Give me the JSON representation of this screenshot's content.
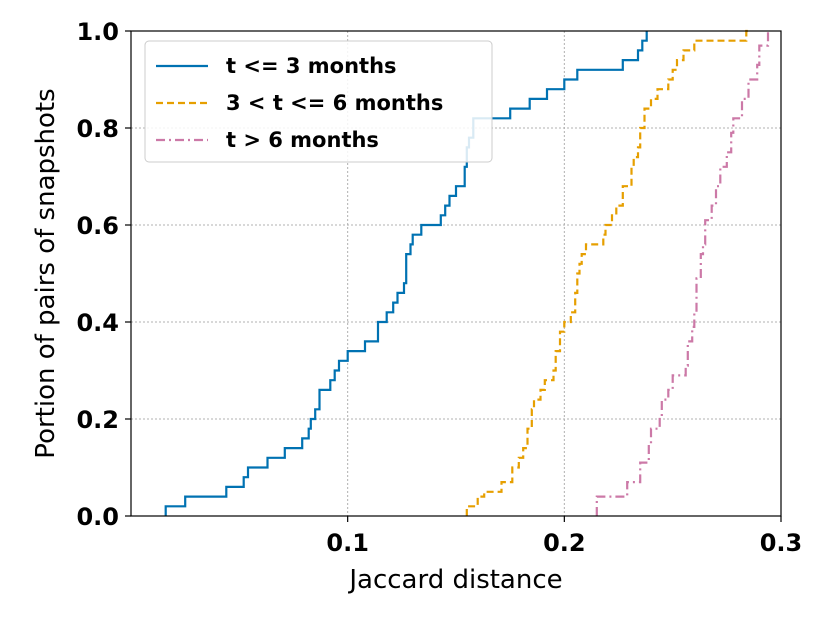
{
  "chart_data": {
    "type": "line",
    "step": true,
    "xlabel": "Jaccard distance",
    "ylabel": "Portion of pairs of snapshots",
    "xlim": [
      0.0,
      0.3
    ],
    "ylim": [
      0.0,
      1.0
    ],
    "x_ticks": [
      {
        "value": 0.1,
        "label": "0.1"
      },
      {
        "value": 0.2,
        "label": "0.2"
      },
      {
        "value": 0.3,
        "label": "0.3"
      }
    ],
    "y_ticks": [
      {
        "value": 0.0,
        "label": "0.0"
      },
      {
        "value": 0.2,
        "label": "0.2"
      },
      {
        "value": 0.4,
        "label": "0.4"
      },
      {
        "value": 0.6,
        "label": "0.6"
      },
      {
        "value": 0.8,
        "label": "0.8"
      },
      {
        "value": 1.0,
        "label": "1.0"
      }
    ],
    "grid": true,
    "legend_position": "top-left",
    "series": [
      {
        "name": "t <= 3 months",
        "color": "#0072b2",
        "dash": "solid",
        "points": [
          [
            0.016,
            0.0
          ],
          [
            0.016,
            0.02
          ],
          [
            0.025,
            0.02
          ],
          [
            0.025,
            0.04
          ],
          [
            0.044,
            0.04
          ],
          [
            0.044,
            0.06
          ],
          [
            0.052,
            0.06
          ],
          [
            0.052,
            0.08
          ],
          [
            0.054,
            0.08
          ],
          [
            0.054,
            0.1
          ],
          [
            0.063,
            0.1
          ],
          [
            0.063,
            0.12
          ],
          [
            0.071,
            0.12
          ],
          [
            0.071,
            0.14
          ],
          [
            0.079,
            0.14
          ],
          [
            0.079,
            0.16
          ],
          [
            0.082,
            0.16
          ],
          [
            0.082,
            0.18
          ],
          [
            0.083,
            0.18
          ],
          [
            0.083,
            0.2
          ],
          [
            0.085,
            0.2
          ],
          [
            0.085,
            0.22
          ],
          [
            0.087,
            0.22
          ],
          [
            0.087,
            0.26
          ],
          [
            0.092,
            0.26
          ],
          [
            0.092,
            0.28
          ],
          [
            0.094,
            0.28
          ],
          [
            0.094,
            0.3
          ],
          [
            0.096,
            0.3
          ],
          [
            0.096,
            0.32
          ],
          [
            0.1,
            0.32
          ],
          [
            0.1,
            0.34
          ],
          [
            0.108,
            0.34
          ],
          [
            0.108,
            0.36
          ],
          [
            0.114,
            0.36
          ],
          [
            0.114,
            0.4
          ],
          [
            0.118,
            0.4
          ],
          [
            0.118,
            0.42
          ],
          [
            0.121,
            0.42
          ],
          [
            0.121,
            0.44
          ],
          [
            0.123,
            0.44
          ],
          [
            0.123,
            0.46
          ],
          [
            0.126,
            0.46
          ],
          [
            0.126,
            0.48
          ],
          [
            0.127,
            0.48
          ],
          [
            0.127,
            0.54
          ],
          [
            0.129,
            0.54
          ],
          [
            0.129,
            0.56
          ],
          [
            0.13,
            0.56
          ],
          [
            0.13,
            0.58
          ],
          [
            0.134,
            0.58
          ],
          [
            0.134,
            0.6
          ],
          [
            0.143,
            0.6
          ],
          [
            0.143,
            0.62
          ],
          [
            0.145,
            0.62
          ],
          [
            0.145,
            0.64
          ],
          [
            0.147,
            0.64
          ],
          [
            0.147,
            0.66
          ],
          [
            0.15,
            0.66
          ],
          [
            0.15,
            0.68
          ],
          [
            0.154,
            0.68
          ],
          [
            0.154,
            0.72
          ],
          [
            0.155,
            0.72
          ],
          [
            0.155,
            0.76
          ],
          [
            0.156,
            0.76
          ],
          [
            0.156,
            0.78
          ],
          [
            0.158,
            0.78
          ],
          [
            0.158,
            0.82
          ],
          [
            0.175,
            0.82
          ],
          [
            0.175,
            0.84
          ],
          [
            0.184,
            0.84
          ],
          [
            0.184,
            0.86
          ],
          [
            0.192,
            0.86
          ],
          [
            0.192,
            0.88
          ],
          [
            0.2,
            0.88
          ],
          [
            0.2,
            0.9
          ],
          [
            0.206,
            0.9
          ],
          [
            0.206,
            0.92
          ],
          [
            0.227,
            0.92
          ],
          [
            0.227,
            0.94
          ],
          [
            0.234,
            0.94
          ],
          [
            0.234,
            0.96
          ],
          [
            0.236,
            0.96
          ],
          [
            0.236,
            0.98
          ],
          [
            0.238,
            0.98
          ],
          [
            0.238,
            1.0
          ]
        ]
      },
      {
        "name": "3 < t <= 6 months",
        "color": "#e69f00",
        "dash": "dashed",
        "points": [
          [
            0.155,
            0.0
          ],
          [
            0.155,
            0.02
          ],
          [
            0.16,
            0.02
          ],
          [
            0.16,
            0.04
          ],
          [
            0.163,
            0.04
          ],
          [
            0.163,
            0.05
          ],
          [
            0.171,
            0.05
          ],
          [
            0.171,
            0.07
          ],
          [
            0.176,
            0.07
          ],
          [
            0.176,
            0.1
          ],
          [
            0.179,
            0.1
          ],
          [
            0.179,
            0.12
          ],
          [
            0.181,
            0.12
          ],
          [
            0.181,
            0.14
          ],
          [
            0.183,
            0.14
          ],
          [
            0.183,
            0.18
          ],
          [
            0.185,
            0.18
          ],
          [
            0.185,
            0.22
          ],
          [
            0.186,
            0.22
          ],
          [
            0.186,
            0.24
          ],
          [
            0.189,
            0.24
          ],
          [
            0.189,
            0.26
          ],
          [
            0.191,
            0.26
          ],
          [
            0.191,
            0.28
          ],
          [
            0.195,
            0.28
          ],
          [
            0.195,
            0.3
          ],
          [
            0.196,
            0.3
          ],
          [
            0.196,
            0.34
          ],
          [
            0.198,
            0.34
          ],
          [
            0.198,
            0.38
          ],
          [
            0.2,
            0.38
          ],
          [
            0.2,
            0.4
          ],
          [
            0.203,
            0.4
          ],
          [
            0.203,
            0.42
          ],
          [
            0.205,
            0.42
          ],
          [
            0.205,
            0.46
          ],
          [
            0.206,
            0.46
          ],
          [
            0.206,
            0.5
          ],
          [
            0.207,
            0.5
          ],
          [
            0.207,
            0.52
          ],
          [
            0.208,
            0.52
          ],
          [
            0.208,
            0.54
          ],
          [
            0.21,
            0.54
          ],
          [
            0.21,
            0.56
          ],
          [
            0.218,
            0.56
          ],
          [
            0.218,
            0.58
          ],
          [
            0.219,
            0.58
          ],
          [
            0.219,
            0.6
          ],
          [
            0.222,
            0.6
          ],
          [
            0.222,
            0.62
          ],
          [
            0.224,
            0.62
          ],
          [
            0.224,
            0.64
          ],
          [
            0.227,
            0.64
          ],
          [
            0.227,
            0.68
          ],
          [
            0.231,
            0.68
          ],
          [
            0.231,
            0.72
          ],
          [
            0.232,
            0.72
          ],
          [
            0.232,
            0.74
          ],
          [
            0.234,
            0.74
          ],
          [
            0.234,
            0.76
          ],
          [
            0.235,
            0.76
          ],
          [
            0.235,
            0.8
          ],
          [
            0.237,
            0.8
          ],
          [
            0.237,
            0.84
          ],
          [
            0.24,
            0.84
          ],
          [
            0.24,
            0.86
          ],
          [
            0.243,
            0.86
          ],
          [
            0.243,
            0.88
          ],
          [
            0.248,
            0.88
          ],
          [
            0.248,
            0.9
          ],
          [
            0.25,
            0.9
          ],
          [
            0.25,
            0.92
          ],
          [
            0.252,
            0.92
          ],
          [
            0.252,
            0.94
          ],
          [
            0.255,
            0.94
          ],
          [
            0.255,
            0.96
          ],
          [
            0.26,
            0.96
          ],
          [
            0.26,
            0.98
          ],
          [
            0.284,
            0.98
          ],
          [
            0.284,
            1.0
          ],
          [
            0.286,
            1.0
          ]
        ]
      },
      {
        "name": "t > 6 months",
        "color": "#cc79a7",
        "dash": "dashdot",
        "points": [
          [
            0.215,
            0.0
          ],
          [
            0.215,
            0.04
          ],
          [
            0.229,
            0.04
          ],
          [
            0.229,
            0.07
          ],
          [
            0.235,
            0.07
          ],
          [
            0.235,
            0.11
          ],
          [
            0.239,
            0.11
          ],
          [
            0.239,
            0.15
          ],
          [
            0.24,
            0.15
          ],
          [
            0.24,
            0.18
          ],
          [
            0.244,
            0.18
          ],
          [
            0.244,
            0.2
          ],
          [
            0.245,
            0.2
          ],
          [
            0.245,
            0.24
          ],
          [
            0.248,
            0.24
          ],
          [
            0.248,
            0.26
          ],
          [
            0.25,
            0.26
          ],
          [
            0.25,
            0.29
          ],
          [
            0.256,
            0.29
          ],
          [
            0.256,
            0.31
          ],
          [
            0.257,
            0.31
          ],
          [
            0.257,
            0.36
          ],
          [
            0.259,
            0.36
          ],
          [
            0.259,
            0.39
          ],
          [
            0.26,
            0.39
          ],
          [
            0.26,
            0.42
          ],
          [
            0.261,
            0.42
          ],
          [
            0.261,
            0.49
          ],
          [
            0.263,
            0.49
          ],
          [
            0.263,
            0.54
          ],
          [
            0.264,
            0.54
          ],
          [
            0.264,
            0.56
          ],
          [
            0.265,
            0.56
          ],
          [
            0.265,
            0.61
          ],
          [
            0.268,
            0.61
          ],
          [
            0.268,
            0.64
          ],
          [
            0.27,
            0.64
          ],
          [
            0.27,
            0.68
          ],
          [
            0.272,
            0.68
          ],
          [
            0.272,
            0.72
          ],
          [
            0.275,
            0.72
          ],
          [
            0.275,
            0.75
          ],
          [
            0.277,
            0.75
          ],
          [
            0.277,
            0.79
          ],
          [
            0.278,
            0.79
          ],
          [
            0.278,
            0.82
          ],
          [
            0.282,
            0.82
          ],
          [
            0.282,
            0.86
          ],
          [
            0.285,
            0.86
          ],
          [
            0.285,
            0.9
          ],
          [
            0.289,
            0.9
          ],
          [
            0.289,
            0.93
          ],
          [
            0.29,
            0.93
          ],
          [
            0.29,
            0.97
          ],
          [
            0.294,
            0.97
          ],
          [
            0.294,
            1.0
          ],
          [
            0.295,
            1.0
          ]
        ]
      }
    ]
  }
}
